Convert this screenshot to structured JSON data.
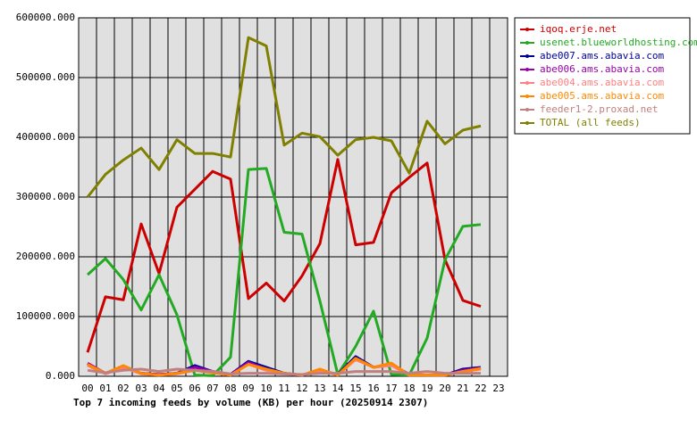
{
  "chart_data": {
    "type": "line",
    "title": "Top 7 incoming feeds by volume (KB) per hour (20250914 2307)",
    "categories": [
      "00",
      "01",
      "02",
      "03",
      "04",
      "05",
      "06",
      "07",
      "08",
      "09",
      "10",
      "11",
      "12",
      "13",
      "14",
      "15",
      "16",
      "17",
      "18",
      "19",
      "20",
      "21",
      "22",
      "23"
    ],
    "ylim": [
      0,
      600000
    ],
    "yticks": [
      {
        "value": 0,
        "label": "0.000"
      },
      {
        "value": 100000,
        "label": "100000.000"
      },
      {
        "value": 200000,
        "label": "200000.000"
      },
      {
        "value": 300000,
        "label": "300000.000"
      },
      {
        "value": 400000,
        "label": "400000.000"
      },
      {
        "value": 500000,
        "label": "500000.000"
      },
      {
        "value": 600000,
        "label": "600000.000"
      }
    ],
    "grid": true,
    "legend": "right",
    "series": [
      {
        "name": "iqoq.erje.net",
        "color": "#cc0000",
        "values": [
          40000,
          133000,
          128000,
          255000,
          172000,
          283000,
          313000,
          343000,
          330000,
          130000,
          156000,
          126000,
          168000,
          222000,
          363000,
          220000,
          224000,
          307000,
          333000,
          357000,
          195000,
          127000,
          117000,
          null
        ]
      },
      {
        "name": "usenet.blueworldhosting.com",
        "color": "#22aa22",
        "values": [
          170000,
          197000,
          162000,
          111000,
          170000,
          103000,
          2000,
          1000,
          32000,
          346000,
          348000,
          241000,
          238000,
          126000,
          3000,
          50000,
          109000,
          3000,
          2000,
          64000,
          195000,
          251000,
          254000,
          null
        ]
      },
      {
        "name": "abe007.ams.abavia.com",
        "color": "#000099",
        "values": [
          20000,
          5000,
          15000,
          5000,
          3000,
          5000,
          18000,
          8000,
          3000,
          25000,
          15000,
          5000,
          2000,
          10000,
          3000,
          33000,
          15000,
          20000,
          3000,
          2000,
          2000,
          12000,
          15000,
          null
        ]
      },
      {
        "name": "abe006.ams.abavia.com",
        "color": "#9900aa",
        "values": [
          22000,
          5000,
          15000,
          5000,
          3000,
          5000,
          15000,
          8000,
          3000,
          23000,
          12000,
          5000,
          2000,
          10000,
          3000,
          30000,
          15000,
          20000,
          3000,
          2000,
          2000,
          10000,
          14000,
          null
        ]
      },
      {
        "name": "abe004.ams.abavia.com",
        "color": "#ff8080",
        "values": [
          18000,
          4000,
          15000,
          4000,
          2000,
          4000,
          10000,
          6000,
          2000,
          20000,
          10000,
          4000,
          2000,
          10000,
          2000,
          28000,
          15000,
          18000,
          2000,
          2000,
          2000,
          8000,
          12000,
          null
        ]
      },
      {
        "name": "abe005.ams.abavia.com",
        "color": "#ff8800",
        "values": [
          20000,
          5000,
          18000,
          5000,
          2000,
          5000,
          10000,
          6000,
          2000,
          20000,
          12000,
          5000,
          2000,
          12000,
          2000,
          30000,
          15000,
          22000,
          2000,
          2000,
          2000,
          8000,
          13000,
          null
        ]
      },
      {
        "name": "feeder1-2.proxad.net",
        "color": "#c08080",
        "values": [
          10000,
          6000,
          10000,
          12000,
          8000,
          12000,
          10000,
          8000,
          4000,
          5000,
          5000,
          4000,
          3000,
          5000,
          5000,
          8000,
          8000,
          8000,
          5000,
          8000,
          5000,
          5000,
          5000,
          null
        ]
      },
      {
        "name": "TOTAL (all feeds)",
        "color": "#808000",
        "values": [
          300000,
          338000,
          362000,
          382000,
          346000,
          396000,
          373000,
          373000,
          367000,
          567000,
          553000,
          387000,
          407000,
          401000,
          370000,
          396000,
          400000,
          394000,
          340000,
          427000,
          389000,
          412000,
          419000,
          null
        ]
      }
    ]
  }
}
